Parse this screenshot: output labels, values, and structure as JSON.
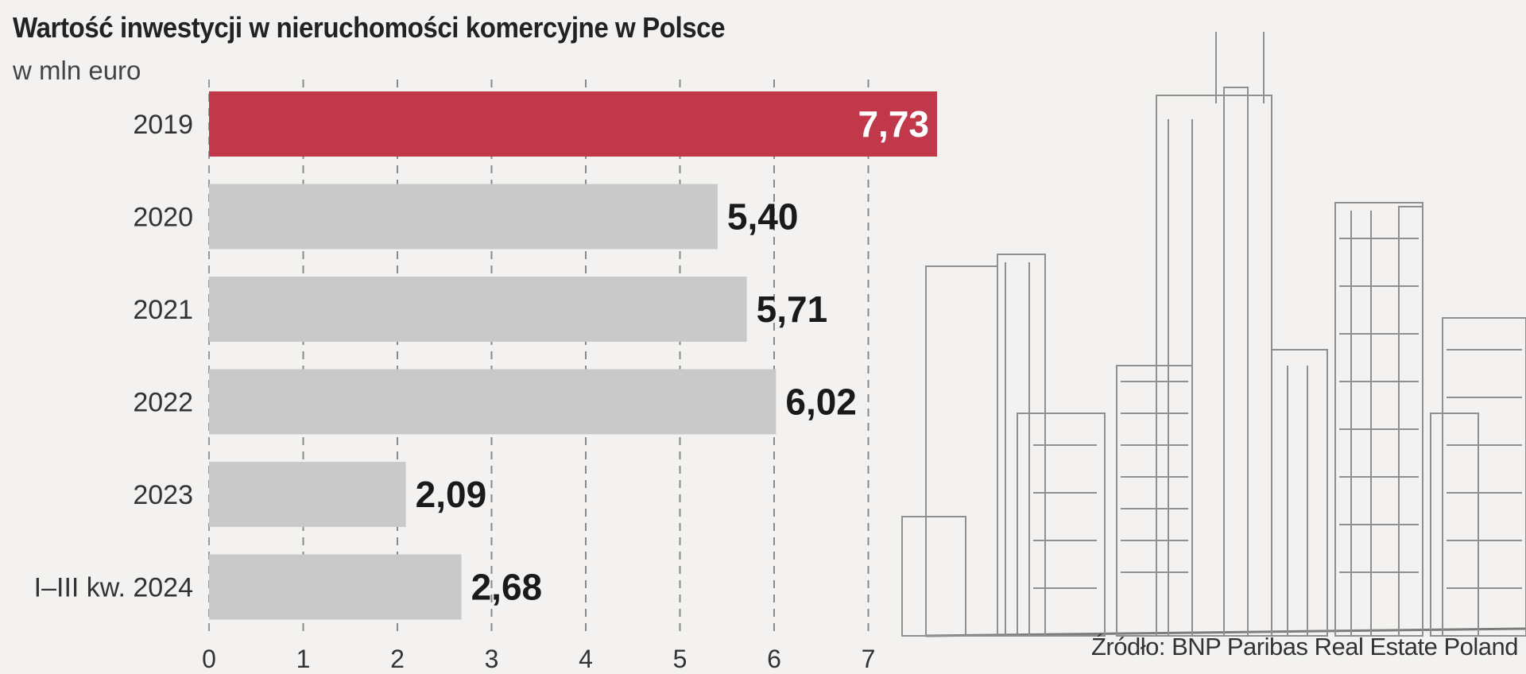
{
  "header": {
    "title": "Wartość inwestycji w nieruchomości komercyjne w Polsce",
    "subtitle": "w mln euro"
  },
  "footer": {
    "source": "Źródło: BNP Paribas Real Estate Poland"
  },
  "colors": {
    "highlight": "#c0384a",
    "bar": "#c9c9c9",
    "background": "#f3f2f0",
    "text": "#222222"
  },
  "chart_data": {
    "type": "bar",
    "orientation": "horizontal",
    "title": "Wartość inwestycji w nieruchomości komercyjne w Polsce",
    "subtitle": "w mln euro",
    "categories": [
      "2019",
      "2020",
      "2021",
      "2022",
      "2023",
      "I–III kw. 2024"
    ],
    "values": [
      7.73,
      5.4,
      5.71,
      6.02,
      2.09,
      2.68
    ],
    "value_labels": [
      "7,73",
      "5,40",
      "5,71",
      "6,02",
      "2,09",
      "2,68"
    ],
    "highlight_index": 0,
    "xticks": [
      "0",
      "1",
      "2",
      "3",
      "4",
      "5",
      "6",
      "7"
    ],
    "xlim": [
      0,
      7.73
    ],
    "grid": "vertical dashed",
    "xlabel": "",
    "ylabel": ""
  }
}
